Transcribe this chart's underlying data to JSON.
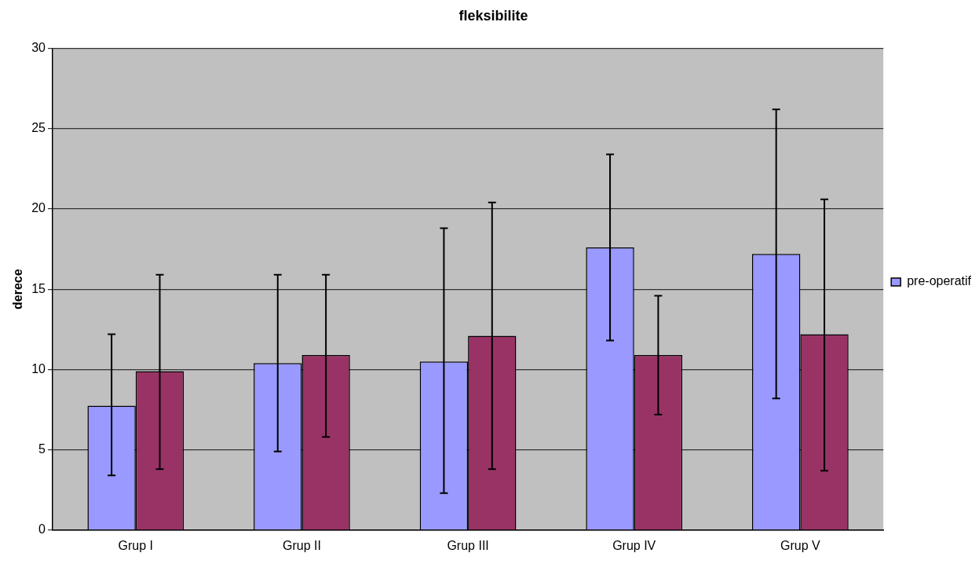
{
  "chart_data": {
    "type": "bar",
    "title": "fleksibilite",
    "ylabel": "derece",
    "categories": [
      "Grup I",
      "Grup II",
      "Grup III",
      "Grup IV",
      "Grup V"
    ],
    "series": [
      {
        "name": "pre-operatif",
        "color": "#9999ff",
        "values": [
          7.75,
          10.4,
          10.5,
          17.6,
          17.2
        ],
        "errors": [
          [
            3.4,
            12.2
          ],
          [
            4.9,
            15.9
          ],
          [
            2.3,
            18.8
          ],
          [
            11.8,
            23.4
          ],
          [
            8.2,
            26.2
          ]
        ]
      },
      {
        "color": "#993366",
        "values": [
          9.9,
          10.9,
          12.1,
          10.9,
          12.2
        ],
        "errors": [
          [
            3.8,
            15.9
          ],
          [
            5.8,
            15.9
          ],
          [
            3.8,
            20.4
          ],
          [
            7.2,
            14.6
          ],
          [
            3.7,
            20.6
          ]
        ]
      }
    ],
    "ylim": [
      0,
      30
    ],
    "yticks": [
      0,
      5,
      10,
      15,
      20,
      25,
      30
    ],
    "grid": "y",
    "legend": "right"
  }
}
